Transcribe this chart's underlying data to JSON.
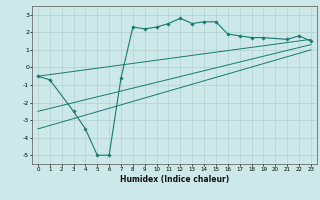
{
  "xlabel": "Humidex (Indice chaleur)",
  "ylabel": "",
  "bg_color": "#cce8e8",
  "line_color": "#1a7a6e",
  "grid_color": "#b8d4d4",
  "xlim": [
    -0.5,
    23.5
  ],
  "ylim": [
    -5.5,
    3.5
  ],
  "xticks": [
    0,
    1,
    2,
    3,
    4,
    5,
    6,
    7,
    8,
    9,
    10,
    11,
    12,
    13,
    14,
    15,
    16,
    17,
    18,
    19,
    20,
    21,
    22,
    23
  ],
  "yticks": [
    -5,
    -4,
    -3,
    -2,
    -1,
    0,
    1,
    2,
    3
  ],
  "line1_x": [
    0,
    1,
    3,
    4,
    5,
    6,
    7,
    8,
    9,
    10,
    11,
    12,
    13,
    14,
    15,
    16,
    17,
    18,
    19,
    21,
    22,
    23
  ],
  "line1_y": [
    -0.5,
    -0.7,
    -2.5,
    -3.5,
    -5.0,
    -5.0,
    -0.6,
    2.3,
    2.2,
    2.3,
    2.5,
    2.8,
    2.5,
    2.6,
    2.6,
    1.9,
    1.8,
    1.7,
    1.7,
    1.6,
    1.8,
    1.5
  ],
  "line2_x": [
    0,
    23
  ],
  "line2_y": [
    -0.5,
    1.6
  ],
  "line3_x": [
    0,
    23
  ],
  "line3_y": [
    -2.5,
    1.3
  ],
  "line4_x": [
    0,
    23
  ],
  "line4_y": [
    -3.5,
    1.0
  ]
}
